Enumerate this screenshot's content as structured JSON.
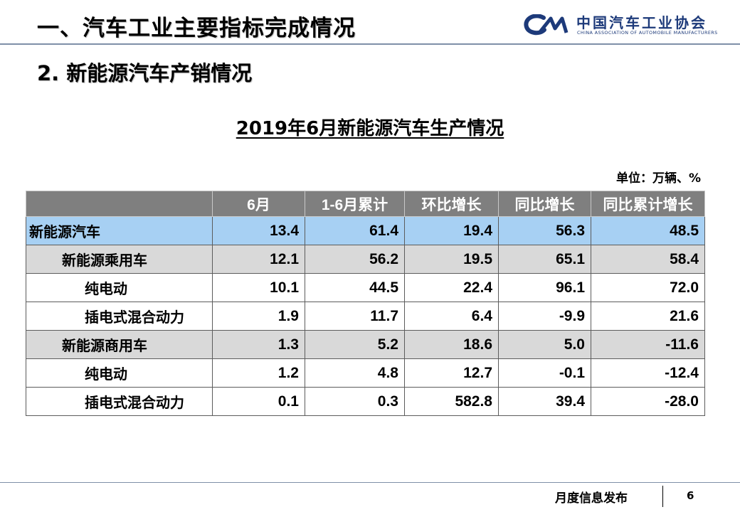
{
  "header": {
    "main_title": "一、汽车工业主要指标完成情况",
    "section_title": "2. 新能源汽车产销情况",
    "logo_cn": "中国汽车工业协会",
    "logo_en": "CHINA ASSOCIATION OF AUTOMOBILE MANUFACTURERS",
    "accent_color": "#1d3a7a"
  },
  "table": {
    "title": "2019年6月新能源汽车生产情况",
    "unit": "单位：万辆、%",
    "columns": [
      "",
      "6月",
      "1-6月累计",
      "环比增长",
      "同比增长",
      "同比累计增长"
    ],
    "rows": [
      {
        "label": "新能源汽车",
        "level": 0,
        "values": [
          "13.4",
          "61.4",
          "19.4",
          "56.3",
          "48.5"
        ]
      },
      {
        "label": "新能源乘用车",
        "level": 1,
        "values": [
          "12.1",
          "56.2",
          "19.5",
          "65.1",
          "58.4"
        ]
      },
      {
        "label": "纯电动",
        "level": 2,
        "values": [
          "10.1",
          "44.5",
          "22.4",
          "96.1",
          "72.0"
        ]
      },
      {
        "label": "插电式混合动力",
        "level": 2,
        "values": [
          "1.9",
          "11.7",
          "6.4",
          "-9.9",
          "21.6"
        ]
      },
      {
        "label": "新能源商用车",
        "level": 1,
        "values": [
          "1.3",
          "5.2",
          "18.6",
          "5.0",
          "-11.6"
        ]
      },
      {
        "label": "纯电动",
        "level": 2,
        "values": [
          "1.2",
          "4.8",
          "12.7",
          "-0.1",
          "-12.4"
        ]
      },
      {
        "label": "插电式混合动力",
        "level": 2,
        "values": [
          "0.1",
          "0.3",
          "582.8",
          "39.4",
          "-28.0"
        ]
      }
    ],
    "colors": {
      "header_bg": "#7f7f7f",
      "total_row_bg": "#a7d0f3",
      "category_row_bg": "#d9d9d9"
    }
  },
  "footer": {
    "label": "月度信息发布",
    "page_number": "6"
  }
}
